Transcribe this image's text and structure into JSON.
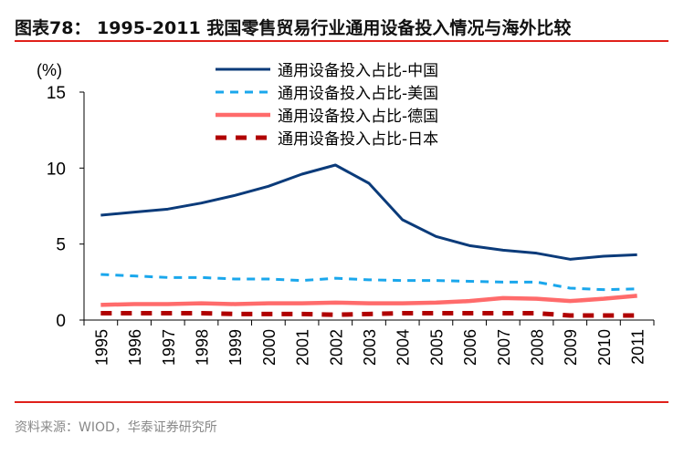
{
  "title": "图表78：  1995-2011 我国零售贸易行业通用设备投入情况与海外比较",
  "source": "资料来源：WIOD，华泰证券研究所",
  "chart_data": {
    "type": "line",
    "title": "",
    "ylabel": "(%)",
    "xlabel": "",
    "ylim": [
      0,
      15
    ],
    "yticks": [
      0,
      5,
      10,
      15
    ],
    "grid": false,
    "legend_placement": "top-center",
    "x": [
      "1995",
      "1996",
      "1997",
      "1998",
      "1999",
      "2000",
      "2001",
      "2002",
      "2003",
      "2004",
      "2005",
      "2006",
      "2007",
      "2008",
      "2009",
      "2010",
      "2011"
    ],
    "series": [
      {
        "name": "通用设备投入占比-中国",
        "color": "#0b3b7a",
        "style": "solid",
        "values": [
          6.9,
          7.1,
          7.3,
          7.7,
          8.2,
          8.8,
          9.6,
          10.2,
          9.0,
          6.6,
          5.5,
          4.9,
          4.6,
          4.4,
          4.0,
          4.2,
          4.3
        ]
      },
      {
        "name": "通用设备投入占比-美国",
        "color": "#1aa7ec",
        "style": "dashed",
        "values": [
          3.0,
          2.9,
          2.8,
          2.8,
          2.7,
          2.7,
          2.6,
          2.75,
          2.65,
          2.6,
          2.6,
          2.55,
          2.5,
          2.5,
          2.1,
          2.0,
          2.05
        ]
      },
      {
        "name": "通用设备投入占比-德国",
        "color": "#ff6b6b",
        "style": "solid-thick",
        "values": [
          1.0,
          1.05,
          1.05,
          1.1,
          1.05,
          1.1,
          1.1,
          1.15,
          1.1,
          1.1,
          1.15,
          1.25,
          1.45,
          1.4,
          1.25,
          1.4,
          1.6
        ]
      },
      {
        "name": "通用设备投入占比-日本",
        "color": "#b00000",
        "style": "dashed-thick",
        "values": [
          0.45,
          0.45,
          0.45,
          0.45,
          0.4,
          0.4,
          0.4,
          0.35,
          0.4,
          0.45,
          0.45,
          0.45,
          0.45,
          0.45,
          0.3,
          0.3,
          0.3
        ]
      }
    ]
  }
}
